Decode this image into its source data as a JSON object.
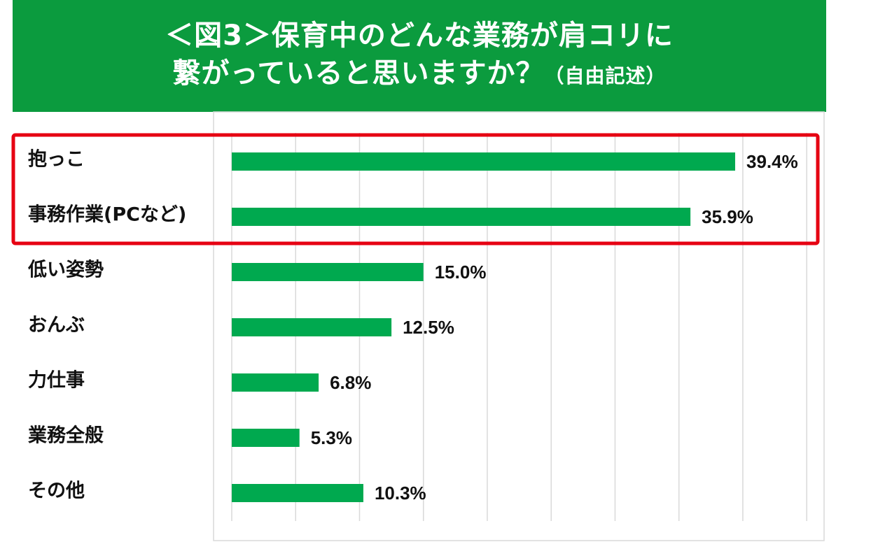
{
  "title": {
    "line1": "＜図3＞保育中のどんな業務が肩コリに",
    "line2": "繋がっていると思いますか？",
    "note": "（自由記述）"
  },
  "colors": {
    "banner": "#0b9b3e",
    "bar": "#00a94f",
    "highlight": "#e60012",
    "grid": "#d9d9d9"
  },
  "chart_data": {
    "type": "bar",
    "orientation": "horizontal",
    "title": "＜図3＞保育中のどんな業務が肩コリに繋がっていると思いますか？（自由記述）",
    "categories": [
      "抱っこ",
      "事務作業(PCなど)",
      "低い姿勢",
      "おんぶ",
      "力仕事",
      "業務全般",
      "その他"
    ],
    "values": [
      39.4,
      35.9,
      15.0,
      12.5,
      6.8,
      5.3,
      10.3
    ],
    "value_labels": [
      "39.4%",
      "35.9%",
      "15.0%",
      "12.5%",
      "6.8%",
      "5.3%",
      "10.3%"
    ],
    "unit": "%",
    "xlim": [
      0,
      45
    ],
    "grid": true,
    "legend": "none",
    "highlighted_categories": [
      "抱っこ",
      "事務作業(PCなど)"
    ]
  }
}
